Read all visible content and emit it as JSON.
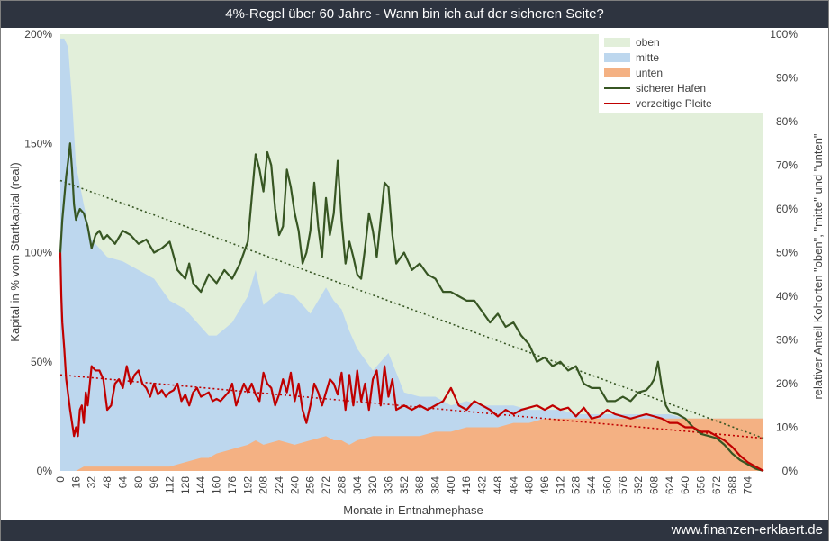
{
  "title": "4%-Regel über 60 Jahre - Wann bin ich auf der sicheren Seite?",
  "footer": "www.finanzen-erklaert.de",
  "chart_data": {
    "type": "area",
    "xlabel": "Monate in Entnahmephase",
    "ylabel_left": "Kapital in % vom Startkapital (real)",
    "ylabel_right": "relativer Anteil Kohorten \"oben\", \"mitte\" und \"unten\"",
    "xlim": [
      0,
      720
    ],
    "ylim_left": [
      0,
      200
    ],
    "ylim_right": [
      0,
      100
    ],
    "x_ticks": [
      "0",
      "16",
      "32",
      "48",
      "64",
      "80",
      "96",
      "112",
      "128",
      "144",
      "160",
      "176",
      "192",
      "208",
      "224",
      "240",
      "256",
      "272",
      "288",
      "304",
      "320",
      "336",
      "352",
      "368",
      "384",
      "400",
      "416",
      "432",
      "448",
      "464",
      "480",
      "496",
      "512",
      "528",
      "544",
      "560",
      "576",
      "592",
      "608",
      "624",
      "640",
      "656",
      "672",
      "688",
      "704"
    ],
    "y_ticks_left": [
      "0%",
      "50%",
      "100%",
      "150%",
      "200%"
    ],
    "y_ticks_right": [
      "0%",
      "10%",
      "20%",
      "30%",
      "40%",
      "50%",
      "60%",
      "70%",
      "80%",
      "90%",
      "100%"
    ],
    "legend": [
      "oben",
      "mitte",
      "unten",
      "sicherer Hafen",
      "vorzeitige Pleite"
    ],
    "legend_position": "top-right",
    "colors": {
      "oben": "#e2efda",
      "mitte": "#bdd7ee",
      "unten": "#f4b183",
      "sicherer_hafen": "#375623",
      "vorzeitige_pleite": "#c00000"
    },
    "area_series_right_axis": {
      "x": [
        0,
        4,
        8,
        12,
        16,
        24,
        32,
        48,
        64,
        80,
        96,
        112,
        128,
        144,
        152,
        160,
        176,
        192,
        200,
        208,
        224,
        240,
        256,
        272,
        280,
        288,
        296,
        304,
        320,
        336,
        352,
        368,
        384,
        400,
        416,
        432,
        448,
        464,
        480,
        496,
        512,
        528,
        544,
        560,
        576,
        592,
        608,
        624,
        640,
        656,
        672,
        688,
        704,
        720
      ],
      "unten": [
        0,
        0,
        0,
        0,
        0,
        1,
        1,
        1,
        1,
        1,
        1,
        1,
        2,
        3,
        3,
        4,
        5,
        6,
        7,
        6,
        7,
        6,
        7,
        8,
        7,
        7,
        6,
        7,
        8,
        8,
        8,
        8,
        9,
        9,
        10,
        10,
        10,
        11,
        11,
        12,
        12,
        12,
        12,
        12,
        12,
        12,
        12,
        12,
        12,
        12,
        12,
        12,
        12,
        12
      ],
      "mitte": [
        99,
        99,
        97,
        85,
        70,
        60,
        52,
        48,
        47,
        45,
        43,
        38,
        35,
        30,
        28,
        27,
        29,
        34,
        39,
        32,
        34,
        34,
        29,
        34,
        32,
        30,
        26,
        21,
        15,
        19,
        10,
        9,
        8,
        6,
        6,
        5,
        5,
        4,
        3,
        2,
        2,
        1,
        1,
        1,
        1,
        1,
        1,
        1,
        0,
        0,
        0,
        0,
        0,
        0
      ]
    },
    "line_series_left_axis": [
      {
        "name": "sicherer Hafen",
        "x": [
          0,
          2,
          4,
          6,
          8,
          10,
          12,
          14,
          16,
          20,
          24,
          28,
          32,
          36,
          40,
          44,
          48,
          56,
          64,
          72,
          80,
          88,
          96,
          104,
          112,
          120,
          128,
          132,
          136,
          144,
          152,
          160,
          168,
          176,
          184,
          192,
          196,
          200,
          204,
          208,
          212,
          216,
          220,
          224,
          228,
          232,
          236,
          240,
          244,
          248,
          252,
          256,
          260,
          264,
          268,
          272,
          276,
          280,
          284,
          288,
          292,
          296,
          300,
          304,
          308,
          312,
          316,
          320,
          324,
          328,
          332,
          336,
          340,
          344,
          352,
          360,
          368,
          376,
          384,
          392,
          400,
          408,
          416,
          424,
          432,
          440,
          448,
          456,
          464,
          472,
          480,
          488,
          496,
          504,
          512,
          520,
          528,
          536,
          544,
          552,
          560,
          568,
          576,
          584,
          592,
          600,
          604,
          608,
          612,
          616,
          620,
          624,
          632,
          640,
          648,
          656,
          664,
          672,
          680,
          688,
          696,
          704,
          712,
          720
        ],
        "values": [
          100,
          115,
          125,
          135,
          142,
          150,
          138,
          122,
          115,
          120,
          118,
          112,
          102,
          108,
          110,
          106,
          108,
          104,
          110,
          108,
          104,
          106,
          100,
          102,
          105,
          92,
          88,
          95,
          86,
          82,
          90,
          86,
          92,
          88,
          95,
          105,
          125,
          145,
          138,
          128,
          146,
          140,
          120,
          108,
          112,
          138,
          130,
          118,
          110,
          95,
          100,
          110,
          132,
          112,
          98,
          125,
          108,
          118,
          142,
          115,
          95,
          105,
          98,
          90,
          88,
          102,
          118,
          110,
          98,
          115,
          132,
          130,
          108,
          95,
          100,
          92,
          95,
          90,
          88,
          82,
          82,
          80,
          78,
          78,
          73,
          68,
          72,
          66,
          68,
          62,
          58,
          50,
          52,
          48,
          50,
          46,
          48,
          40,
          38,
          38,
          32,
          32,
          34,
          32,
          36,
          37,
          39,
          42,
          50,
          38,
          30,
          27,
          26,
          24,
          20,
          17,
          16,
          15,
          12,
          8,
          5,
          3,
          1,
          0
        ]
      },
      {
        "name": "vorzeitige Pleite",
        "x": [
          0,
          1,
          2,
          4,
          6,
          8,
          10,
          12,
          14,
          16,
          18,
          20,
          22,
          24,
          26,
          28,
          32,
          36,
          40,
          44,
          48,
          52,
          56,
          60,
          64,
          68,
          72,
          76,
          80,
          84,
          88,
          92,
          96,
          100,
          104,
          108,
          112,
          116,
          120,
          124,
          128,
          132,
          136,
          140,
          144,
          148,
          152,
          156,
          160,
          164,
          168,
          172,
          176,
          180,
          184,
          188,
          192,
          196,
          200,
          204,
          208,
          212,
          216,
          220,
          224,
          228,
          232,
          236,
          240,
          244,
          248,
          252,
          256,
          260,
          264,
          268,
          272,
          276,
          280,
          284,
          288,
          292,
          296,
          300,
          304,
          308,
          312,
          316,
          320,
          324,
          328,
          332,
          336,
          340,
          344,
          352,
          360,
          368,
          376,
          384,
          392,
          400,
          408,
          416,
          424,
          432,
          440,
          448,
          456,
          464,
          472,
          480,
          488,
          496,
          504,
          512,
          520,
          528,
          536,
          544,
          552,
          560,
          568,
          576,
          584,
          592,
          600,
          608,
          616,
          624,
          632,
          640,
          648,
          656,
          664,
          672,
          680,
          688,
          696,
          704,
          712,
          720
        ],
        "values": [
          100,
          80,
          68,
          56,
          42,
          35,
          28,
          22,
          16,
          20,
          16,
          28,
          30,
          22,
          36,
          30,
          48,
          46,
          46,
          42,
          28,
          30,
          40,
          42,
          38,
          48,
          40,
          44,
          46,
          40,
          38,
          34,
          40,
          35,
          37,
          34,
          36,
          37,
          40,
          32,
          35,
          30,
          36,
          38,
          34,
          35,
          36,
          32,
          33,
          32,
          34,
          36,
          40,
          30,
          35,
          40,
          36,
          40,
          35,
          32,
          45,
          40,
          38,
          30,
          35,
          42,
          36,
          45,
          32,
          40,
          28,
          22,
          30,
          40,
          36,
          30,
          36,
          42,
          40,
          35,
          45,
          28,
          44,
          30,
          46,
          32,
          40,
          28,
          42,
          46,
          30,
          48,
          34,
          42,
          28,
          30,
          28,
          30,
          28,
          30,
          32,
          38,
          30,
          28,
          32,
          30,
          28,
          25,
          28,
          26,
          28,
          29,
          30,
          28,
          30,
          28,
          29,
          25,
          29,
          24,
          25,
          28,
          26,
          25,
          24,
          25,
          26,
          25,
          24,
          22,
          22,
          20,
          20,
          18,
          18,
          16,
          14,
          11,
          7,
          4,
          2,
          0
        ]
      }
    ],
    "trendlines": {
      "sicherer Hafen": {
        "start": 133,
        "end": 15
      },
      "vorzeitige Pleite": {
        "start": 44,
        "end": 15
      }
    }
  }
}
